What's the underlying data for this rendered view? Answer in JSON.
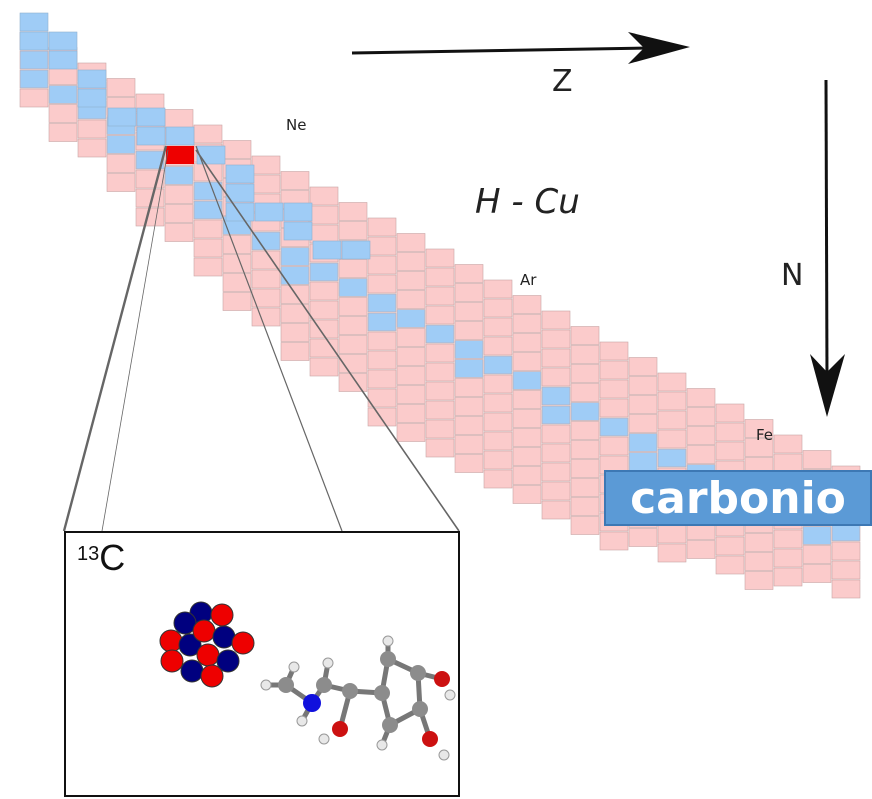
{
  "title": "H - Cu",
  "axes": {
    "z_label": "Z",
    "n_label": "N"
  },
  "element_labels": [
    "Ne",
    "Ar",
    "Fe"
  ],
  "badge_text": "carbonio",
  "inset": {
    "mass_number": "13",
    "symbol": "C"
  },
  "colors": {
    "cell_unstable": "#fbcbcb",
    "cell_stable": "#9fccf6",
    "highlight": "#ee0000",
    "badge_bg": "#5b9ad6"
  },
  "highlighted_nuclide": "13C"
}
